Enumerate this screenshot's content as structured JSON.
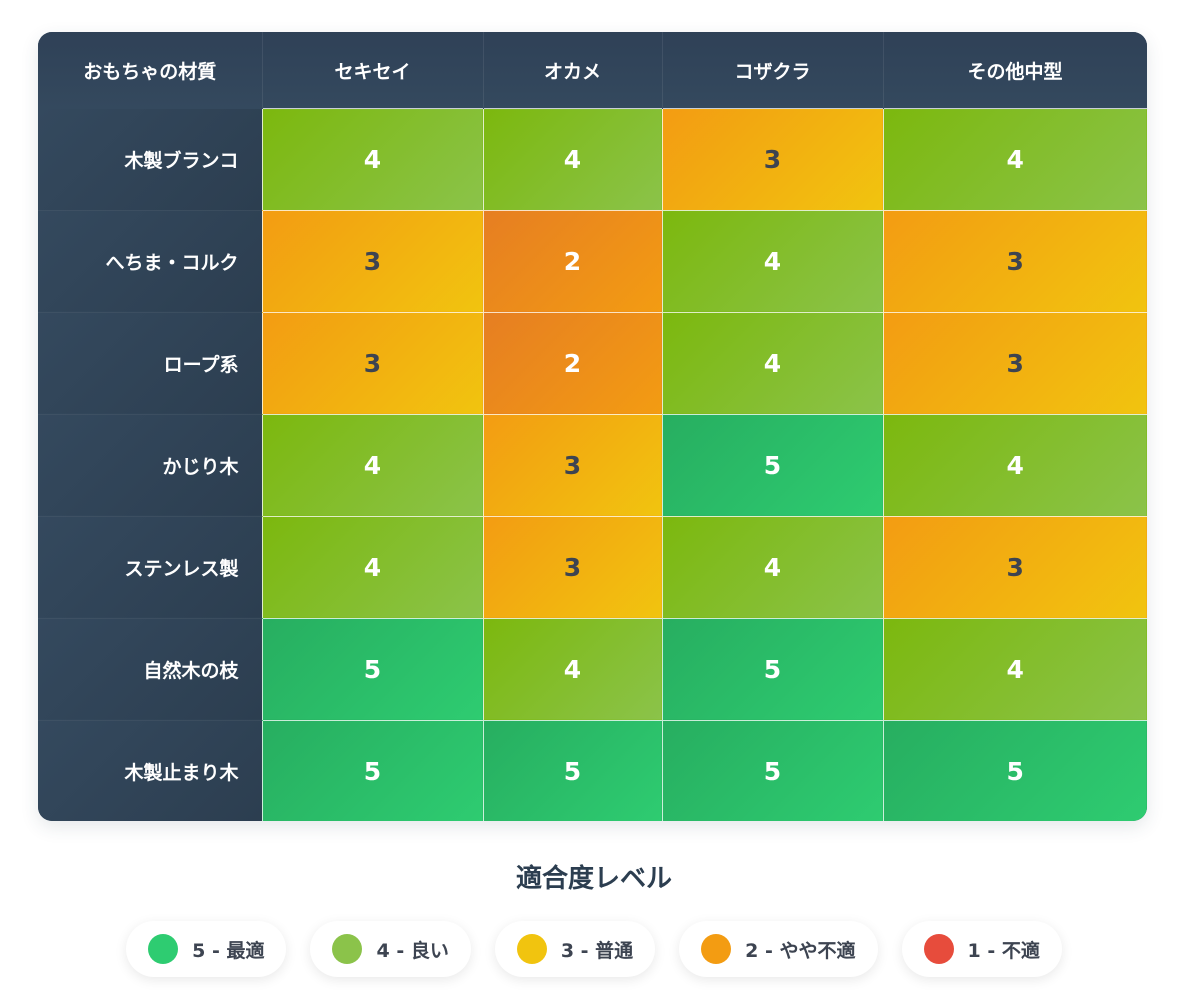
{
  "chart_data": {
    "type": "heatmap",
    "corner_label": "おもちゃの材質",
    "columns": [
      "セキセイ",
      "オカメ",
      "コザクラ",
      "その他中型"
    ],
    "rows": [
      "木製ブランコ",
      "へちま・コルク",
      "ロープ系",
      "かじり木",
      "ステンレス製",
      "自然木の枝",
      "木製止まり木"
    ],
    "values": [
      [
        4,
        4,
        3,
        4
      ],
      [
        3,
        2,
        4,
        3
      ],
      [
        3,
        2,
        4,
        3
      ],
      [
        4,
        3,
        5,
        4
      ],
      [
        4,
        3,
        4,
        3
      ],
      [
        5,
        4,
        5,
        4
      ],
      [
        5,
        5,
        5,
        5
      ]
    ],
    "value_range": [
      1,
      5
    ]
  },
  "legend": {
    "title": "適合度レベル",
    "items": [
      {
        "level": 5,
        "label": "5 - 最適",
        "color": "#2ecc71"
      },
      {
        "level": 4,
        "label": "4 - 良い",
        "color": "#8bc34a"
      },
      {
        "level": 3,
        "label": "3 - 普通",
        "color": "#f1c40f"
      },
      {
        "level": 2,
        "label": "2 - やや不適",
        "color": "#f39c12"
      },
      {
        "level": 1,
        "label": "1 - 不適",
        "color": "#e74c3c"
      }
    ]
  }
}
